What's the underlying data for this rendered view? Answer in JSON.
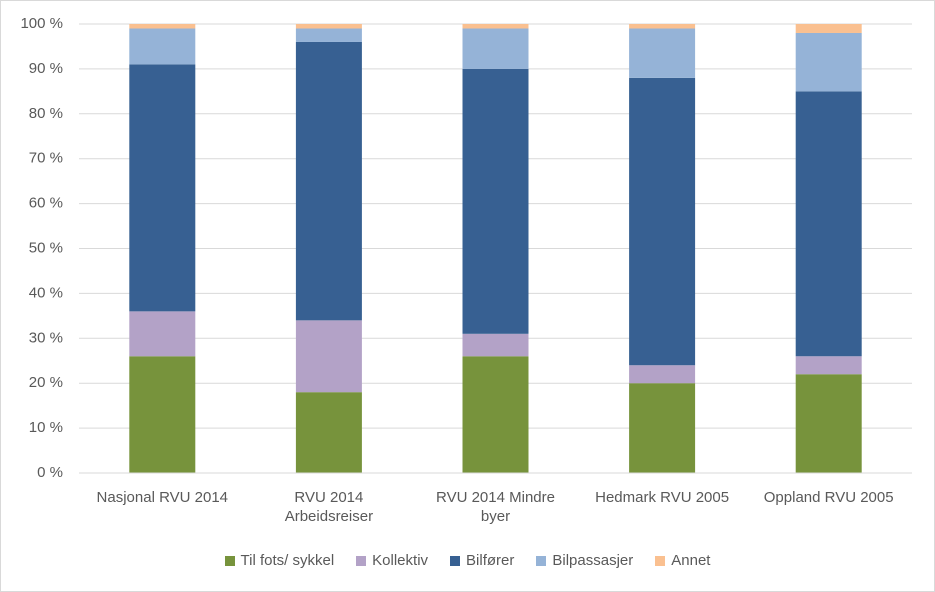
{
  "chart_data": {
    "type": "stacked_bar",
    "categories": [
      "Nasjonal RVU 2014",
      "RVU 2014\nArbeidsreiser",
      "RVU 2014 Mindre\nbyer",
      "Hedmark RVU 2005",
      "Oppland RVU 2005"
    ],
    "series": [
      {
        "name": "Til fots/ sykkel",
        "color": "#77933c",
        "values": [
          26,
          18,
          26,
          20,
          22
        ]
      },
      {
        "name": "Kollektiv",
        "color": "#b3a2c7",
        "values": [
          10,
          16,
          5,
          4,
          4
        ]
      },
      {
        "name": "Bilfører",
        "color": "#376092",
        "values": [
          55,
          62,
          59,
          64,
          59
        ]
      },
      {
        "name": "Bilpassasjer",
        "color": "#95b3d7",
        "values": [
          8,
          3,
          9,
          11,
          13
        ]
      },
      {
        "name": "Annet",
        "color": "#fac090",
        "values": [
          1,
          1,
          1,
          1,
          2
        ]
      }
    ],
    "ylim": [
      0,
      100
    ],
    "yticks": [
      {
        "value": 0,
        "label": "0 %"
      },
      {
        "value": 10,
        "label": "10 %"
      },
      {
        "value": 20,
        "label": "20 %"
      },
      {
        "value": 30,
        "label": "30 %"
      },
      {
        "value": 40,
        "label": "40 %"
      },
      {
        "value": 50,
        "label": "50 %"
      },
      {
        "value": 60,
        "label": "60 %"
      },
      {
        "value": 70,
        "label": "70 %"
      },
      {
        "value": 80,
        "label": "80 %"
      },
      {
        "value": 90,
        "label": "90 %"
      },
      {
        "value": 100,
        "label": "100 %"
      }
    ],
    "grid": true,
    "legend": "bottom"
  }
}
